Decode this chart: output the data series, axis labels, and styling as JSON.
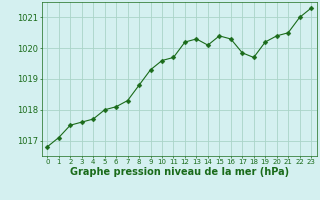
{
  "x": [
    0,
    1,
    2,
    3,
    4,
    5,
    6,
    7,
    8,
    9,
    10,
    11,
    12,
    13,
    14,
    15,
    16,
    17,
    18,
    19,
    20,
    21,
    22,
    23
  ],
  "y": [
    1016.8,
    1017.1,
    1017.5,
    1017.6,
    1017.7,
    1018.0,
    1018.1,
    1018.3,
    1018.8,
    1019.3,
    1019.6,
    1019.7,
    1020.2,
    1020.3,
    1020.1,
    1020.4,
    1020.3,
    1019.85,
    1019.7,
    1020.2,
    1020.4,
    1020.5,
    1021.0,
    1021.3
  ],
  "line_color": "#1a6b1a",
  "marker_color": "#1a6b1a",
  "bg_color": "#d4f0f0",
  "grid_color": "#aad4c8",
  "xlabel": "Graphe pression niveau de la mer (hPa)",
  "xlabel_color": "#1a6b1a",
  "tick_color": "#1a6b1a",
  "ylim": [
    1016.5,
    1021.5
  ],
  "yticks": [
    1017,
    1018,
    1019,
    1020,
    1021
  ],
  "xticks": [
    0,
    1,
    2,
    3,
    4,
    5,
    6,
    7,
    8,
    9,
    10,
    11,
    12,
    13,
    14,
    15,
    16,
    17,
    18,
    19,
    20,
    21,
    22,
    23
  ],
  "marker_size": 2.5,
  "line_width": 0.8,
  "font_size": 6,
  "xlabel_font_size": 7
}
